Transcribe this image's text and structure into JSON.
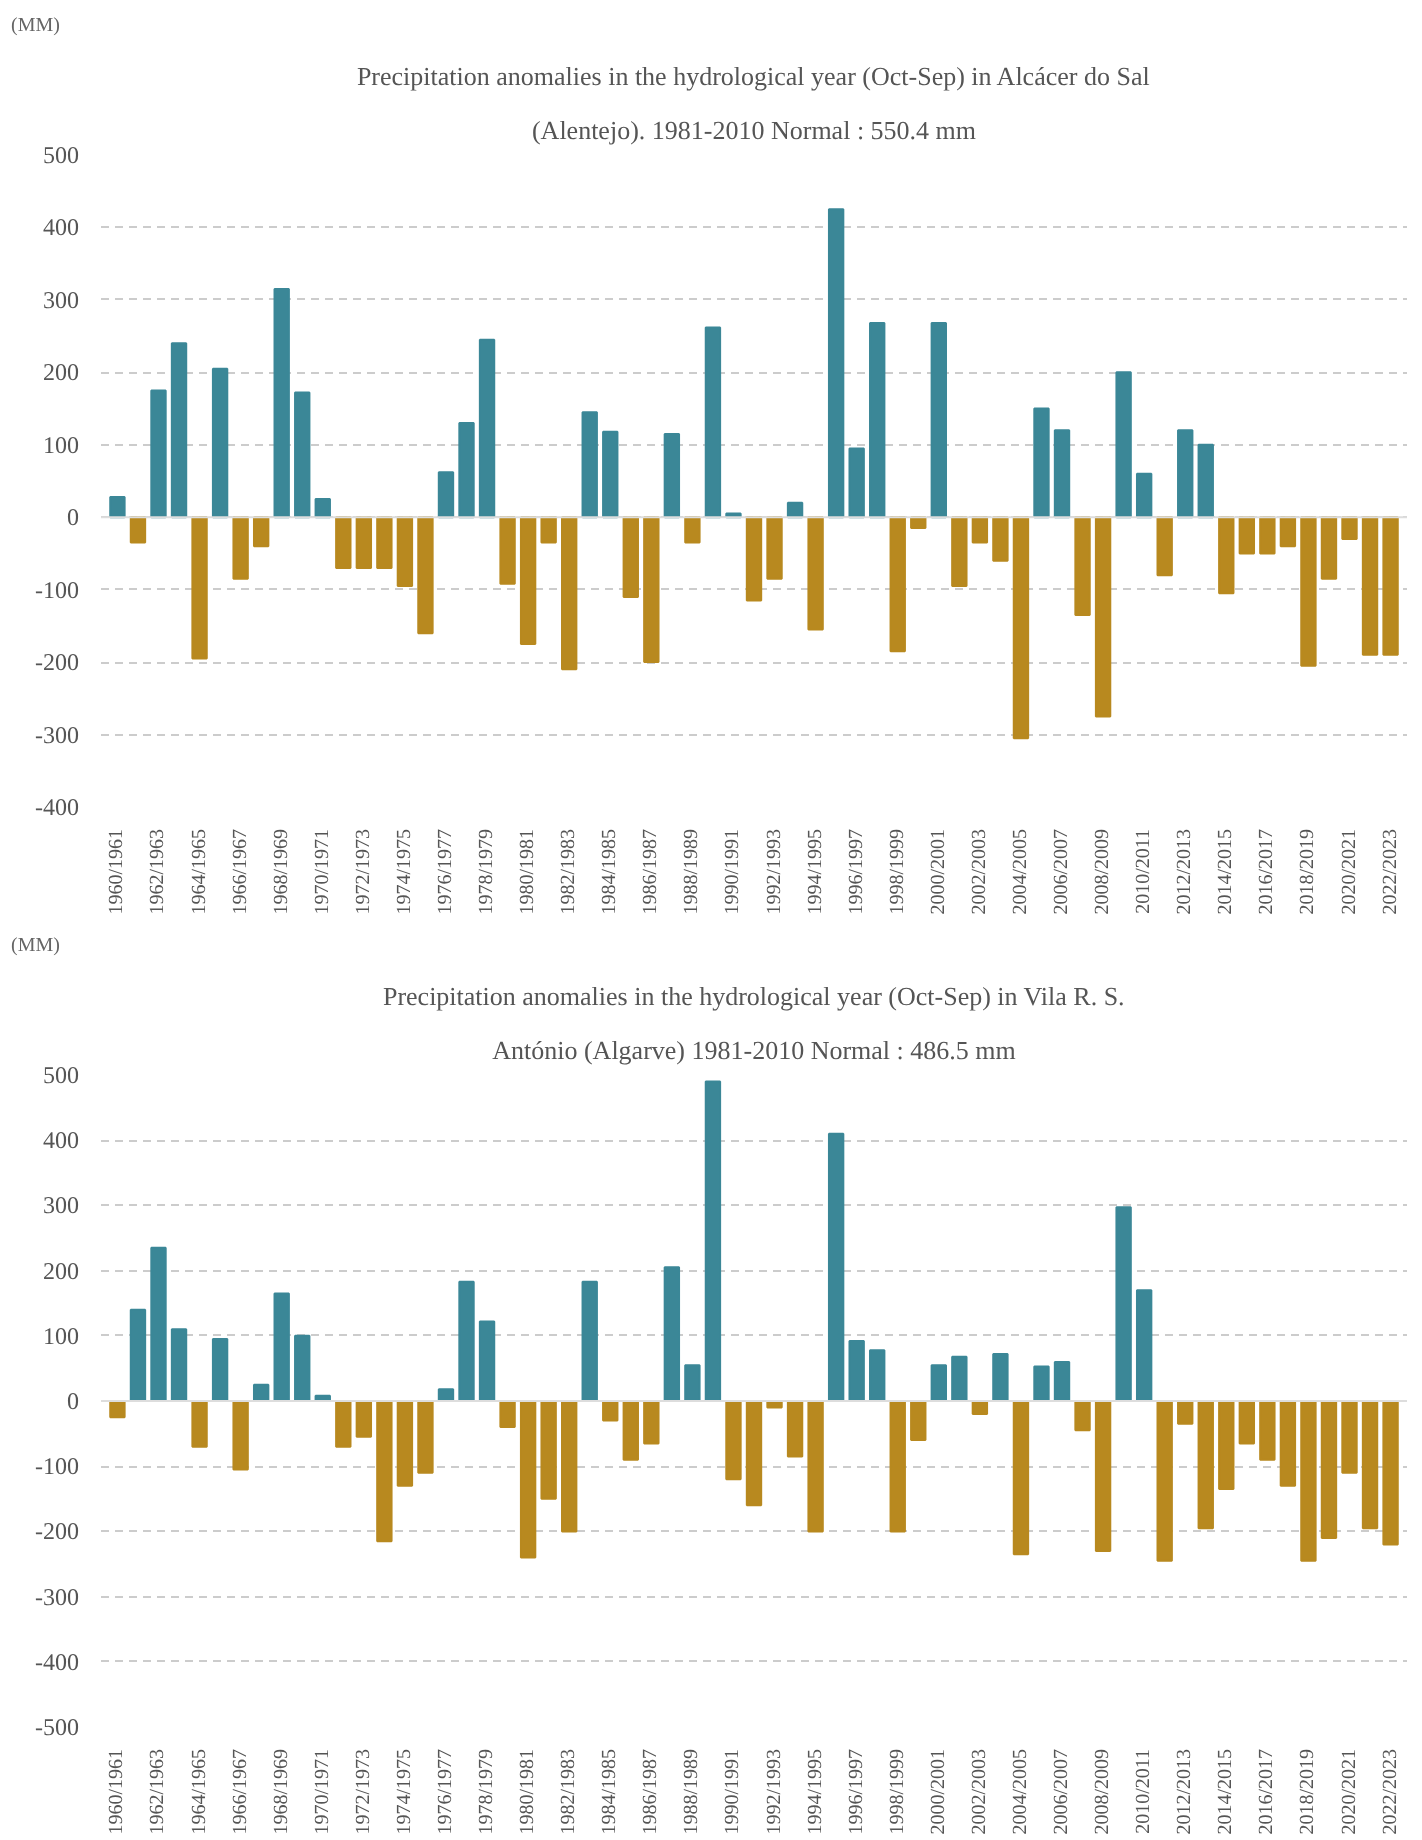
{
  "chart_data": [
    {
      "type": "bar",
      "title": "Precipitation anomalies in the hydrological year (Oct-Sep) in Alcácer do Sal",
      "subtitle": "(Alentejo). 1981-2010 Normal : 550.4 mm",
      "ylabel": "(MM)",
      "categories": [
        "1960/1961",
        null,
        "1962/1963",
        null,
        "1964/1965",
        null,
        "1966/1967",
        null,
        "1968/1969",
        null,
        "1970/1971",
        null,
        "1972/1973",
        null,
        "1974/1975",
        null,
        "1976/1977",
        null,
        "1978/1979",
        null,
        "1980/1981",
        null,
        "1982/1983",
        null,
        "1984/1985",
        null,
        "1986/1987",
        null,
        "1988/1989",
        null,
        "1990/1991",
        null,
        "1992/1993",
        null,
        "1994/1995",
        null,
        "1996/1997",
        null,
        "1998/1999",
        null,
        "2000/2001",
        null,
        "2002/2003",
        null,
        "2004/2005",
        null,
        "2006/2007",
        null,
        "2008/2009",
        null,
        "2010/2011",
        null,
        "2012/2013",
        null,
        "2014/2015",
        null,
        "2016/2017",
        null,
        "2018/2019",
        null,
        "2020/2021",
        null,
        "2022/2023"
      ],
      "values": [
        28,
        -35,
        175,
        240,
        -195,
        205,
        -85,
        -40,
        315,
        172,
        25,
        -70,
        -70,
        -70,
        -95,
        -160,
        62,
        130,
        245,
        -92,
        -175,
        -35,
        -210,
        145,
        118,
        -110,
        -200,
        115,
        -35,
        262,
        5,
        -115,
        -85,
        20,
        -155,
        425,
        95,
        268,
        -185,
        -15,
        268,
        -95,
        -35,
        -60,
        -305,
        150,
        120,
        -135,
        -275,
        200,
        60,
        -80,
        120,
        100,
        -105,
        -50,
        -50,
        -40,
        -205,
        -85,
        -30,
        -190,
        -190
      ],
      "colors": [
        "#3b8797",
        "#b8891f",
        "#3b8797",
        "#3b8797",
        "#b8891f",
        "#3b8797",
        "#b8891f",
        "#b8891f",
        "#3b8797",
        "#3b8797",
        "#3b8797",
        "#b8891f",
        "#b8891f",
        "#b8891f",
        "#b8891f",
        "#b8891f",
        "#3b8797",
        "#3b8797",
        "#3b8797",
        "#b8891f",
        "#b8891f",
        "#b8891f",
        "#b8891f",
        "#3b8797",
        "#3b8797",
        "#b8891f",
        "#b8891f",
        "#3b8797",
        "#b8891f",
        "#3b8797",
        "#3b8797",
        "#b8891f",
        "#b8891f",
        "#3b8797",
        "#b8891f",
        "#3b8797",
        "#3b8797",
        "#3b8797",
        "#b8891f",
        "#b8891f",
        "#3b8797",
        "#b8891f",
        "#b8891f",
        "#b8891f",
        "#b8891f",
        "#3b8797",
        "#3b8797",
        "#b8891f",
        "#b8891f",
        "#3b8797",
        "#3b8797",
        "#b8891f",
        "#3b8797",
        "#3b8797",
        "#b8891f",
        "#b8891f",
        "#b8891f",
        "#b8891f",
        "#b8891f",
        "#b8891f",
        "#b8891f",
        "#b8891f",
        "#b8891f"
      ],
      "ylim": [
        -400,
        500
      ],
      "yticks": [
        -400,
        -300,
        -200,
        -100,
        0,
        100,
        200,
        300,
        400,
        500
      ],
      "grid": "y"
    },
    {
      "type": "bar",
      "title": "Precipitation anomalies in the hydrological year (Oct-Sep) in Vila R. S.",
      "subtitle": "António (Algarve) 1981-2010 Normal : 486.5 mm",
      "ylabel": "(MM)",
      "categories": [
        "1960/1961",
        null,
        "1962/1963",
        null,
        "1964/1965",
        null,
        "1966/1967",
        null,
        "1968/1969",
        null,
        "1970/1971",
        null,
        "1972/1973",
        null,
        "1974/1975",
        null,
        "1976/1977",
        null,
        "1978/1979",
        null,
        "1980/1981",
        null,
        "1982/1983",
        null,
        "1984/1985",
        null,
        "1986/1987",
        null,
        "1988/1989",
        null,
        "1990/1991",
        null,
        "1992/1993",
        null,
        "1994/1995",
        null,
        "1996/1997",
        null,
        "1998/1999",
        null,
        "2000/2001",
        null,
        "2002/2003",
        null,
        "2004/2005",
        null,
        "2006/2007",
        null,
        "2008/2009",
        null,
        "2010/2011",
        null,
        "2012/2013",
        null,
        "2014/2015",
        null,
        "2016/2017",
        null,
        "2018/2019",
        null,
        "2020/2021",
        null,
        "2022/2023"
      ],
      "values": [
        -25,
        140,
        235,
        110,
        -70,
        95,
        -105,
        25,
        165,
        100,
        8,
        -70,
        -55,
        -215,
        -130,
        -110,
        18,
        183,
        122,
        -40,
        -240,
        -150,
        -200,
        183,
        -30,
        -90,
        -65,
        205,
        55,
        490,
        -120,
        -160,
        -10,
        -85,
        -200,
        410,
        92,
        78,
        -200,
        -60,
        55,
        68,
        -20,
        72,
        -235,
        53,
        60,
        -45,
        -230,
        297,
        170,
        -245,
        -35,
        -195,
        -135,
        -65,
        -90,
        -130,
        -245,
        -210,
        -110,
        -195,
        -220
      ],
      "colors": [
        "#b8891f",
        "#3b8797",
        "#3b8797",
        "#3b8797",
        "#b8891f",
        "#3b8797",
        "#b8891f",
        "#3b8797",
        "#3b8797",
        "#3b8797",
        "#3b8797",
        "#b8891f",
        "#b8891f",
        "#b8891f",
        "#b8891f",
        "#b8891f",
        "#3b8797",
        "#3b8797",
        "#3b8797",
        "#b8891f",
        "#b8891f",
        "#b8891f",
        "#b8891f",
        "#3b8797",
        "#b8891f",
        "#b8891f",
        "#b8891f",
        "#3b8797",
        "#3b8797",
        "#3b8797",
        "#b8891f",
        "#b8891f",
        "#b8891f",
        "#b8891f",
        "#b8891f",
        "#3b8797",
        "#3b8797",
        "#3b8797",
        "#b8891f",
        "#b8891f",
        "#3b8797",
        "#3b8797",
        "#b8891f",
        "#3b8797",
        "#b8891f",
        "#3b8797",
        "#3b8797",
        "#b8891f",
        "#b8891f",
        "#3b8797",
        "#3b8797",
        "#b8891f",
        "#b8891f",
        "#b8891f",
        "#b8891f",
        "#b8891f",
        "#b8891f",
        "#b8891f",
        "#b8891f",
        "#b8891f",
        "#b8891f",
        "#b8891f",
        "#b8891f"
      ],
      "ylim": [
        -500,
        500
      ],
      "yticks": [
        -500,
        -400,
        -300,
        -200,
        -100,
        0,
        100,
        200,
        300,
        400,
        500
      ],
      "grid": "y"
    }
  ]
}
